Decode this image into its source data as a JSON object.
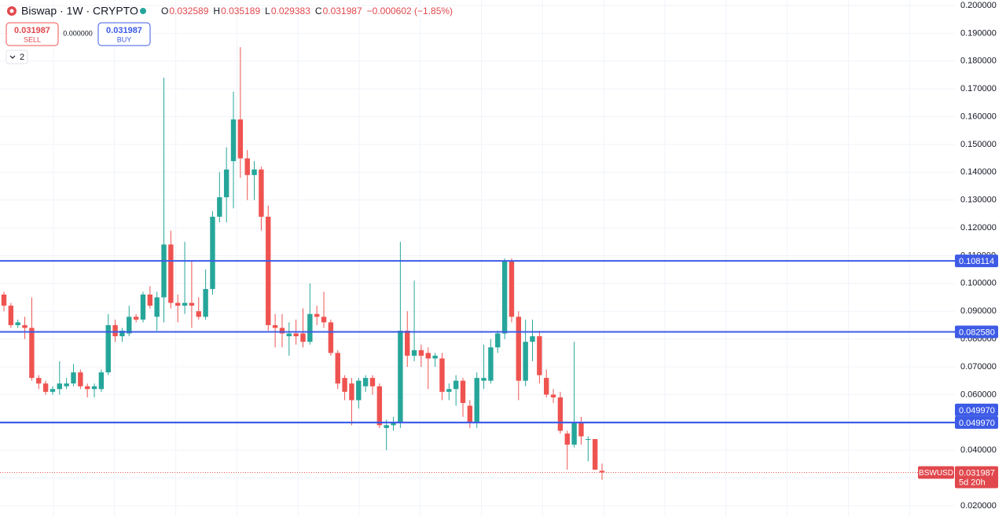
{
  "header": {
    "title": "Biswap · 1W · CRYPTO",
    "ohlc": [
      {
        "key": "O",
        "value": "0.032589"
      },
      {
        "key": "H",
        "value": "0.035189"
      },
      {
        "key": "L",
        "value": "0.029383"
      },
      {
        "key": "C",
        "value": "0.031987"
      }
    ],
    "change": "−0.000602 (−1.85%)",
    "sell": {
      "price": "0.031987",
      "label": "SELL"
    },
    "spread": "0.000000",
    "buy": {
      "price": "0.031987",
      "label": "BUY"
    },
    "indicators": "2"
  },
  "chart_data": {
    "type": "candlestick",
    "up_color": "#26a69a",
    "down_color": "#ef5350",
    "grid": true,
    "ylim": [
      0.0163,
      0.2
    ],
    "yticks": [
      {
        "value": 0.02,
        "label": "0.020000"
      },
      {
        "value": 0.03,
        "label": "0.030000"
      },
      {
        "value": 0.04,
        "label": "0.040000"
      },
      {
        "value": 0.05,
        "label": "0.050000"
      },
      {
        "value": 0.06,
        "label": "0.060000"
      },
      {
        "value": 0.07,
        "label": "0.070000"
      },
      {
        "value": 0.08,
        "label": "0.080000"
      },
      {
        "value": 0.09,
        "label": "0.090000"
      },
      {
        "value": 0.1,
        "label": "0.100000"
      },
      {
        "value": 0.11,
        "label": "0.110000"
      },
      {
        "value": 0.12,
        "label": "0.120000"
      },
      {
        "value": 0.13,
        "label": "0.130000"
      },
      {
        "value": 0.14,
        "label": "0.140000"
      },
      {
        "value": 0.15,
        "label": "0.150000"
      },
      {
        "value": 0.16,
        "label": "0.160000"
      },
      {
        "value": 0.17,
        "label": "0.170000"
      },
      {
        "value": 0.18,
        "label": "0.180000"
      },
      {
        "value": 0.19,
        "label": "0.190000"
      },
      {
        "value": 0.2,
        "label": "0.200000"
      }
    ],
    "open": [
      0.096,
      0.092,
      0.085,
      0.085,
      0.084,
      0.066,
      0.064,
      0.061,
      0.062,
      0.063,
      0.064,
      0.068,
      0.063,
      0.062,
      0.062,
      0.068,
      0.085,
      0.081,
      0.082,
      0.088,
      0.087,
      0.096,
      0.088,
      0.095,
      0.114,
      0.093,
      0.092,
      0.093,
      0.09,
      0.088,
      0.098,
      0.124,
      0.131,
      0.144,
      0.159,
      0.145,
      0.139,
      0.141,
      0.124,
      0.085,
      0.084,
      0.081,
      0.082,
      0.082,
      0.079,
      0.089,
      0.088,
      0.086,
      0.075,
      0.066,
      0.064,
      0.058,
      0.063,
      0.066,
      0.063,
      0.048,
      0.049,
      0.05,
      0.083,
      0.074,
      0.076,
      0.075,
      0.073,
      0.073,
      0.061,
      0.062,
      0.065,
      0.056,
      0.05,
      0.065,
      0.065,
      0.077,
      0.082,
      0.108,
      0.088,
      0.065,
      0.079,
      0.081,
      0.066,
      0.06,
      0.059,
      0.046,
      0.042,
      0.05,
      0.044,
      0.044,
      0.032589
    ],
    "high": [
      0.097,
      0.093,
      0.087,
      0.088,
      0.095,
      0.067,
      0.065,
      0.063,
      0.072,
      0.066,
      0.071,
      0.069,
      0.064,
      0.064,
      0.069,
      0.089,
      0.087,
      0.084,
      0.092,
      0.089,
      0.097,
      0.099,
      0.097,
      0.174,
      0.119,
      0.096,
      0.115,
      0.108,
      0.095,
      0.105,
      0.126,
      0.14,
      0.149,
      0.169,
      0.185,
      0.148,
      0.144,
      0.142,
      0.128,
      0.089,
      0.089,
      0.086,
      0.087,
      0.091,
      0.1,
      0.092,
      0.097,
      0.087,
      0.076,
      0.067,
      0.066,
      0.066,
      0.067,
      0.067,
      0.064,
      0.051,
      0.052,
      0.115,
      0.09,
      0.101,
      0.078,
      0.077,
      0.075,
      0.075,
      0.064,
      0.067,
      0.066,
      0.058,
      0.068,
      0.078,
      0.08,
      0.083,
      0.109,
      0.109,
      0.09,
      0.087,
      0.087,
      0.083,
      0.069,
      0.062,
      0.061,
      0.047,
      0.079,
      0.052,
      0.045,
      0.044,
      0.035189
    ],
    "low": [
      0.09,
      0.084,
      0.084,
      0.08,
      0.065,
      0.062,
      0.06,
      0.06,
      0.06,
      0.062,
      0.063,
      0.062,
      0.059,
      0.059,
      0.061,
      0.067,
      0.079,
      0.079,
      0.081,
      0.086,
      0.086,
      0.091,
      0.083,
      0.086,
      0.091,
      0.086,
      0.089,
      0.084,
      0.087,
      0.087,
      0.096,
      0.122,
      0.122,
      0.127,
      0.138,
      0.13,
      0.13,
      0.119,
      0.083,
      0.077,
      0.077,
      0.074,
      0.078,
      0.077,
      0.078,
      0.085,
      0.084,
      0.074,
      0.062,
      0.058,
      0.049,
      0.055,
      0.061,
      0.06,
      0.048,
      0.04,
      0.047,
      0.048,
      0.07,
      0.072,
      0.07,
      0.062,
      0.07,
      0.058,
      0.058,
      0.056,
      0.052,
      0.048,
      0.048,
      0.062,
      0.064,
      0.075,
      0.08,
      0.086,
      0.058,
      0.063,
      0.072,
      0.064,
      0.059,
      0.057,
      0.046,
      0.033,
      0.041,
      0.042,
      0.036,
      0.033,
      0.029383
    ],
    "close": [
      0.092,
      0.085,
      0.086,
      0.084,
      0.066,
      0.064,
      0.061,
      0.062,
      0.064,
      0.064,
      0.068,
      0.063,
      0.062,
      0.063,
      0.068,
      0.085,
      0.081,
      0.083,
      0.088,
      0.087,
      0.096,
      0.092,
      0.095,
      0.114,
      0.093,
      0.092,
      0.093,
      0.092,
      0.088,
      0.098,
      0.124,
      0.131,
      0.141,
      0.159,
      0.145,
      0.139,
      0.141,
      0.124,
      0.085,
      0.084,
      0.082,
      0.082,
      0.081,
      0.079,
      0.089,
      0.088,
      0.086,
      0.075,
      0.064,
      0.061,
      0.058,
      0.065,
      0.066,
      0.063,
      0.049,
      0.049,
      0.05,
      0.083,
      0.074,
      0.076,
      0.074,
      0.073,
      0.074,
      0.061,
      0.062,
      0.065,
      0.057,
      0.05,
      0.066,
      0.066,
      0.077,
      0.082,
      0.108,
      0.088,
      0.065,
      0.079,
      0.081,
      0.067,
      0.06,
      0.059,
      0.047,
      0.042,
      0.05,
      0.045,
      0.044,
      0.033,
      0.031987
    ],
    "levels": [
      {
        "value": 0.108114,
        "label": "0.108114"
      },
      {
        "value": 0.08258,
        "label": "0.082580"
      },
      {
        "value": 0.04997,
        "label": "0.049970"
      },
      {
        "value": 0.04997,
        "label": "0.049970"
      }
    ],
    "level_color": "#3d5be6",
    "last": {
      "value": 0.031987,
      "label": "0.031987"
    },
    "symbol": "BSWUSD",
    "countdown": "5d 20h"
  }
}
